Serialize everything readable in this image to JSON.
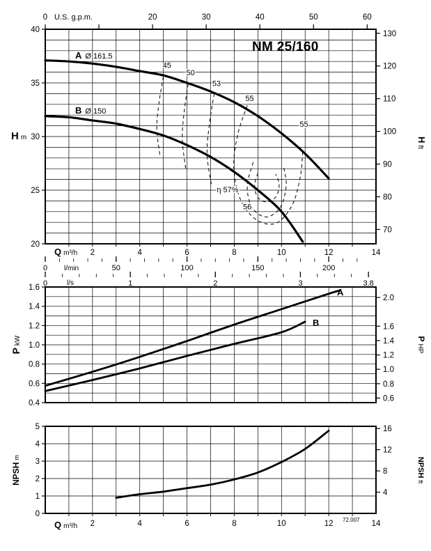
{
  "page": {
    "bg": "#ffffff",
    "code": "72.007"
  },
  "chart_data": [
    {
      "id": "hq",
      "type": "line",
      "title": "NM 25/160",
      "x": {
        "label": "Q",
        "unit": "m³/h",
        "min": 0,
        "max": 14,
        "grid_step": 1,
        "labels": [
          2,
          4,
          6,
          8,
          10,
          12,
          14
        ]
      },
      "top_axis": {
        "unit": "U.S. g.p.m.",
        "to_m3h": 0.22712,
        "tick_step": 10,
        "max": 60,
        "labels": [
          {
            "v": 0,
            "t": "0"
          },
          {
            "v": 20,
            "t": "20"
          },
          {
            "v": 30,
            "t": "30"
          },
          {
            "v": 40,
            "t": "40"
          },
          {
            "v": 50,
            "t": "50"
          },
          {
            "v": 60,
            "t": "60"
          }
        ]
      },
      "sub_axes": [
        {
          "unit": "l/min",
          "to_m3h": 0.06,
          "tick_step": 10,
          "max": 220,
          "labels": [
            {
              "v": 0,
              "t": "0"
            },
            {
              "v": 50,
              "t": "50"
            },
            {
              "v": 100,
              "t": "100"
            },
            {
              "v": 150,
              "t": "150"
            },
            {
              "v": 200,
              "t": "200"
            }
          ]
        },
        {
          "unit": "l/s",
          "to_m3h": 3.6,
          "tick_step": 0.2,
          "max": 3.8,
          "labels": [
            {
              "v": 0,
              "t": "0"
            },
            {
              "v": 1,
              "t": "1"
            },
            {
              "v": 2,
              "t": "2"
            },
            {
              "v": 3,
              "t": "3"
            },
            {
              "v": 3.8,
              "t": "3.8"
            }
          ]
        }
      ],
      "y": {
        "label": "H",
        "unit": "m",
        "min": 20,
        "max": 40,
        "grid_step": 1,
        "labels": [
          20,
          25,
          30,
          35,
          40
        ]
      },
      "y_right": {
        "label": "H",
        "unit": "ft",
        "to_m": 0.3048,
        "labels": [
          70,
          80,
          90,
          100,
          110,
          120,
          130
        ]
      },
      "series": [
        {
          "name": "A",
          "diameter": "Ø 161.5",
          "points": [
            [
              0,
              37.1
            ],
            [
              1,
              37.0
            ],
            [
              2,
              36.8
            ],
            [
              3,
              36.5
            ],
            [
              4,
              36.1
            ],
            [
              5,
              35.7
            ],
            [
              6,
              35.0
            ],
            [
              7,
              34.2
            ],
            [
              8,
              33.2
            ],
            [
              9,
              31.9
            ],
            [
              10,
              30.3
            ],
            [
              11,
              28.4
            ],
            [
              12,
              26.1
            ]
          ]
        },
        {
          "name": "B",
          "diameter": "Ø 150",
          "points": [
            [
              0,
              31.9
            ],
            [
              1,
              31.8
            ],
            [
              2,
              31.5
            ],
            [
              3,
              31.2
            ],
            [
              4,
              30.7
            ],
            [
              5,
              30.1
            ],
            [
              6,
              29.2
            ],
            [
              7,
              28.1
            ],
            [
              8,
              26.7
            ],
            [
              9,
              25.0
            ],
            [
              10,
              23.0
            ],
            [
              10.9,
              20.2
            ]
          ]
        }
      ],
      "contours": [
        {
          "label": "45",
          "at": [
            5.15,
            36.4
          ],
          "pts": [
            [
              5.0,
              35.6
            ],
            [
              4.82,
              33.2
            ],
            [
              4.72,
              30.8
            ],
            [
              4.85,
              28.3
            ]
          ]
        },
        {
          "label": "50",
          "at": [
            6.15,
            35.7
          ],
          "pts": [
            [
              6.05,
              34.9
            ],
            [
              5.88,
              32.3
            ],
            [
              5.8,
              29.8
            ],
            [
              5.95,
              26.9
            ]
          ]
        },
        {
          "label": "53",
          "at": [
            7.25,
            34.7
          ],
          "pts": [
            [
              7.15,
              34.0
            ],
            [
              6.95,
              31.2
            ],
            [
              6.85,
              28.3
            ],
            [
              7.05,
              25.3
            ]
          ]
        },
        {
          "label": "55",
          "at": [
            8.65,
            33.3
          ],
          "pts": [
            [
              8.55,
              32.9
            ],
            [
              8.15,
              30.2
            ],
            [
              7.98,
              27.2
            ],
            [
              8.25,
              24.2
            ],
            [
              8.9,
              22.3
            ],
            [
              9.75,
              21.9
            ],
            [
              10.45,
              23.6
            ],
            [
              10.8,
              26.3
            ],
            [
              10.9,
              28.8
            ]
          ]
        },
        {
          "label": "55",
          "at": [
            10.95,
            30.9
          ],
          "pts": []
        },
        {
          "label": "56",
          "at": [
            8.55,
            23.2
          ],
          "pts": [
            [
              8.8,
              27.6
            ],
            [
              8.55,
              25.4
            ],
            [
              8.75,
              23.4
            ],
            [
              9.35,
              22.5
            ],
            [
              9.95,
              23.4
            ],
            [
              10.2,
              25.4
            ],
            [
              10.1,
              27.1
            ]
          ]
        },
        {
          "label": "η 57%",
          "at": [
            7.72,
            24.8
          ],
          "pts": [
            [
              9.0,
              26.6
            ],
            [
              8.85,
              25.3
            ],
            [
              9.05,
              24.2
            ],
            [
              9.45,
              23.9
            ],
            [
              9.8,
              24.5
            ],
            [
              9.9,
              25.6
            ],
            [
              9.75,
              26.5
            ]
          ]
        }
      ]
    },
    {
      "id": "power",
      "type": "line",
      "x": {
        "label": "Q",
        "unit": "m³/h",
        "min": 0,
        "max": 14,
        "grid_step": 1,
        "labels": []
      },
      "y": {
        "label": "P",
        "unit": "kW",
        "min": 0.4,
        "max": 1.6,
        "grid_step": 0.1,
        "labels": [
          {
            "v": 0.4,
            "t": "0.4"
          },
          {
            "v": 0.6,
            "t": "0.6"
          },
          {
            "v": 0.8,
            "t": "0.8"
          },
          {
            "v": 1.0,
            "t": "1.0"
          },
          {
            "v": 1.2,
            "t": "1.2"
          },
          {
            "v": 1.4,
            "t": "1.4"
          },
          {
            "v": 1.6,
            "t": "1.6"
          }
        ]
      },
      "y_right": {
        "label": "P",
        "unit": "HP",
        "to_kw": 0.7457,
        "labels": [
          {
            "v": 2.0,
            "t": "2.0"
          },
          {
            "v": 1.6,
            "t": "1.6"
          },
          {
            "v": 1.4,
            "t": "1.4"
          },
          {
            "v": 1.2,
            "t": "1.2"
          },
          {
            "v": 1.0,
            "t": "1.0"
          },
          {
            "v": 0.8,
            "t": "0.8"
          },
          {
            "v": 0.6,
            "t": "0.6"
          }
        ]
      },
      "series": [
        {
          "name": "A",
          "points": [
            [
              0,
              0.575
            ],
            [
              2,
              0.72
            ],
            [
              4,
              0.875
            ],
            [
              6,
              1.04
            ],
            [
              8,
              1.21
            ],
            [
              10,
              1.37
            ],
            [
              12,
              1.53
            ],
            [
              12.5,
              1.565
            ]
          ]
        },
        {
          "name": "B",
          "points": [
            [
              0,
              0.52
            ],
            [
              2,
              0.635
            ],
            [
              4,
              0.755
            ],
            [
              6,
              0.885
            ],
            [
              8,
              1.01
            ],
            [
              10,
              1.13
            ],
            [
              11,
              1.24
            ]
          ]
        }
      ]
    },
    {
      "id": "npsh",
      "type": "line",
      "x": {
        "label": "Q",
        "unit": "m³/h",
        "min": 0,
        "max": 14,
        "grid_step": 1,
        "labels": [
          2,
          4,
          6,
          8,
          10,
          12,
          14
        ]
      },
      "y": {
        "label": "NPSH",
        "unit": "m",
        "min": 0,
        "max": 5,
        "grid_step": 1,
        "labels": [
          0,
          1,
          2,
          3,
          4,
          5
        ]
      },
      "y_right": {
        "label": "NPSH",
        "unit": "ft",
        "to_m": 0.3048,
        "labels": [
          {
            "v": 16,
            "t": "16"
          },
          {
            "v": 12,
            "t": "12"
          },
          {
            "v": 8,
            "t": "8"
          },
          {
            "v": 4,
            "t": "4"
          }
        ]
      },
      "series": [
        {
          "name": "NPSH",
          "points": [
            [
              3,
              0.9
            ],
            [
              4,
              1.1
            ],
            [
              5,
              1.25
            ],
            [
              6,
              1.45
            ],
            [
              7,
              1.65
            ],
            [
              8,
              1.95
            ],
            [
              9,
              2.35
            ],
            [
              10,
              2.95
            ],
            [
              11,
              3.7
            ],
            [
              12,
              4.75
            ]
          ]
        }
      ]
    }
  ]
}
